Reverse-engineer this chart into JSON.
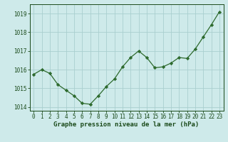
{
  "x": [
    0,
    1,
    2,
    3,
    4,
    5,
    6,
    7,
    8,
    9,
    10,
    11,
    12,
    13,
    14,
    15,
    16,
    17,
    18,
    19,
    20,
    21,
    22,
    23
  ],
  "y": [
    1015.75,
    1016.0,
    1015.8,
    1015.2,
    1014.9,
    1014.6,
    1014.2,
    1014.15,
    1014.6,
    1015.1,
    1015.5,
    1016.15,
    1016.65,
    1017.0,
    1016.65,
    1016.1,
    1016.15,
    1016.35,
    1016.65,
    1016.6,
    1017.1,
    1017.75,
    1018.4,
    1019.1
  ],
  "line_color": "#2d6a2d",
  "marker": "D",
  "marker_size": 2.2,
  "bg_color": "#ceeaea",
  "grid_color": "#aacfcf",
  "xlabel": "Graphe pression niveau de la mer (hPa)",
  "xlabel_color": "#1a4a1a",
  "tick_color": "#1a4a1a",
  "ylim": [
    1013.8,
    1019.5
  ],
  "yticks": [
    1014,
    1015,
    1016,
    1017,
    1018,
    1019
  ],
  "xticks": [
    0,
    1,
    2,
    3,
    4,
    5,
    6,
    7,
    8,
    9,
    10,
    11,
    12,
    13,
    14,
    15,
    16,
    17,
    18,
    19,
    20,
    21,
    22,
    23
  ],
  "tick_fontsize": 5.5,
  "xlabel_fontsize": 6.5
}
